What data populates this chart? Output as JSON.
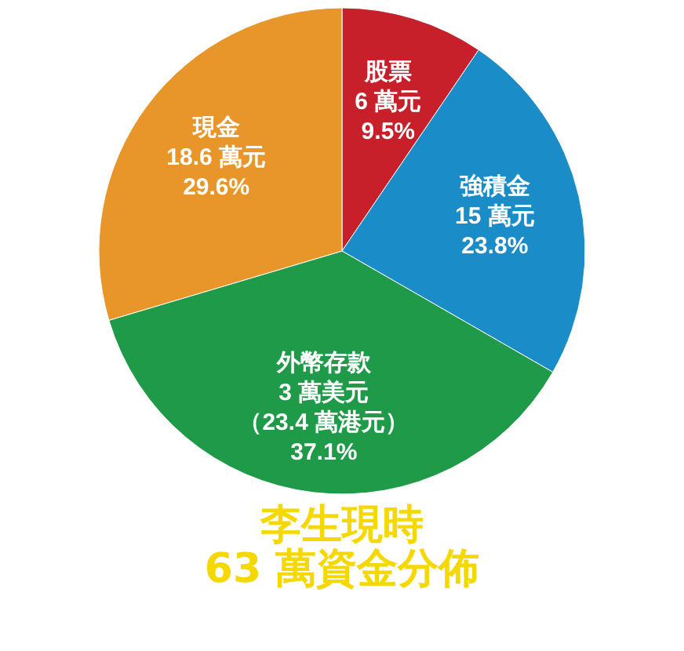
{
  "chart_data": {
    "type": "pie",
    "title": "李生現時",
    "subtitle": "63 萬資金分佈",
    "categories": [
      "股票",
      "強積金",
      "外幣存款",
      "現金"
    ],
    "values": [
      9.5,
      23.8,
      37.1,
      29.6
    ],
    "value_labels": [
      "6 萬元\n9.5%",
      "15 萬元\n23.8%",
      "3 萬美元（23.4 萬港元）\n37.1%",
      "18.6 萬元\n29.6%"
    ],
    "colors": [
      "#c8202a",
      "#1a8cc8",
      "#1f9a48",
      "#e8952a"
    ],
    "legend": false
  }
}
